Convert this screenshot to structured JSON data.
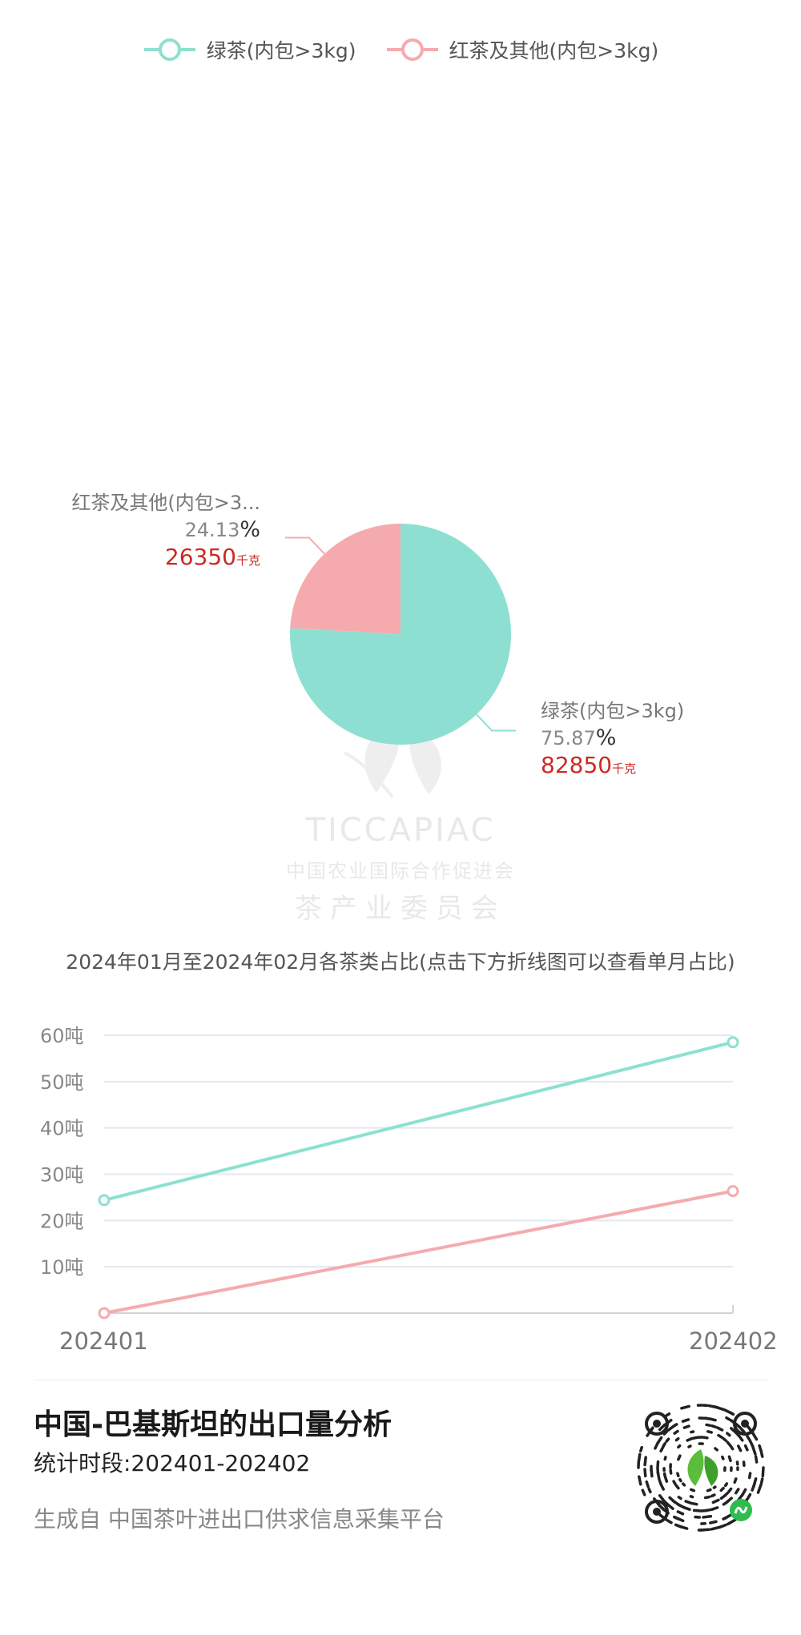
{
  "legend": [
    {
      "label": "绿茶(内包>3kg)",
      "color": "#8de0d1"
    },
    {
      "label": "红茶及其他(内包>3kg)",
      "color": "#f5abae"
    }
  ],
  "watermark": {
    "name": "TICCAPIAC",
    "line1": "中国农业国际合作促进会",
    "line2": "茶产业委员会"
  },
  "pie_labels": {
    "red": {
      "name": "红茶及其他(内包>3...",
      "pct": "24.13",
      "pct_sign": "%",
      "value": "26350",
      "unit": "千克"
    },
    "green": {
      "name": "绿茶(内包>3kg)",
      "pct": "75.87",
      "pct_sign": "%",
      "value": "82850",
      "unit": "千克"
    }
  },
  "line_caption": "2024年01月至2024年02月各茶类占比(点击下方折线图可以查看单月占比)",
  "footer": {
    "title": "中国-巴基斯坦的出口量分析",
    "period": "统计时段:202401-202402",
    "source": "生成自 中国茶叶进出口供求信息采集平台"
  },
  "qr_icon": "wechat-mini-program-qr-icon",
  "chart_data": [
    {
      "type": "pie",
      "series": [
        {
          "name": "绿茶(内包>3kg)",
          "value": 82850,
          "percent": 75.87,
          "color": "#8de0d1"
        },
        {
          "name": "红茶及其他(内包>3kg)",
          "value": 26350,
          "percent": 24.13,
          "color": "#f5abae"
        }
      ],
      "unit": "千克"
    },
    {
      "type": "line",
      "categories": [
        "202401",
        "202402"
      ],
      "series": [
        {
          "name": "绿茶(内包>3kg)",
          "values": [
            24.4,
            58.5
          ],
          "color": "#8de0d1"
        },
        {
          "name": "红茶及其他(内包>3kg)",
          "values": [
            0,
            26.35
          ],
          "color": "#f5abae"
        }
      ],
      "yticks": [
        "10吨",
        "20吨",
        "30吨",
        "40吨",
        "50吨",
        "60吨"
      ],
      "ylim": [
        0,
        60
      ],
      "grid": true
    }
  ]
}
